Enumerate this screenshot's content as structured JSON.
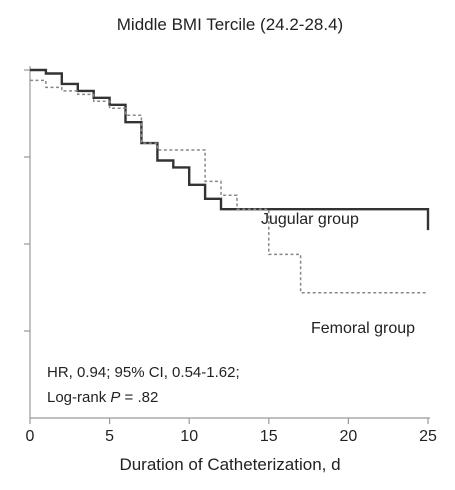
{
  "chart_data": {
    "type": "line",
    "title": "Middle BMI Tercile (24.2-28.4)",
    "xlabel": "Duration of Catheterization, d",
    "ylabel": "",
    "xlim": [
      0,
      25
    ],
    "ylim": [
      0,
      1
    ],
    "x_ticks": [
      0,
      5,
      10,
      15,
      20,
      25
    ],
    "x_tick_labels": [
      "0",
      "5",
      "10",
      "15",
      "20",
      "25"
    ],
    "y_ticks": [
      0.25,
      0.5,
      0.75,
      1.0
    ],
    "grid": false,
    "series": [
      {
        "name": "Jugular group",
        "color": "#333333",
        "line_style": "solid",
        "points": [
          [
            0,
            1.0
          ],
          [
            1,
            0.99
          ],
          [
            2,
            0.96
          ],
          [
            3,
            0.94
          ],
          [
            4,
            0.92
          ],
          [
            5,
            0.9
          ],
          [
            6,
            0.85
          ],
          [
            7,
            0.79
          ],
          [
            8,
            0.74
          ],
          [
            9,
            0.72
          ],
          [
            10,
            0.67
          ],
          [
            11,
            0.63
          ],
          [
            12,
            0.6
          ],
          [
            25,
            0.6
          ],
          [
            25,
            0.54
          ]
        ]
      },
      {
        "name": "Femoral group",
        "color": "#888888",
        "line_style": "dashed",
        "points": [
          [
            0,
            0.97
          ],
          [
            1,
            0.95
          ],
          [
            2,
            0.94
          ],
          [
            3,
            0.93
          ],
          [
            4,
            0.91
          ],
          [
            5,
            0.89
          ],
          [
            6,
            0.87
          ],
          [
            7,
            0.79
          ],
          [
            8,
            0.77
          ],
          [
            11,
            0.68
          ],
          [
            12,
            0.64
          ],
          [
            13,
            0.6
          ],
          [
            15,
            0.6
          ],
          [
            15,
            0.47
          ],
          [
            17,
            0.47
          ],
          [
            17,
            0.36
          ],
          [
            25,
            0.36
          ]
        ]
      }
    ],
    "annotations": {
      "jugular_label": "Jugular group",
      "femoral_label": "Femoral group",
      "stats_line1": "HR, 0.94; 95% CI, 0.54-1.62;",
      "stats_line2_prefix": "Log-rank ",
      "stats_line2_italic": "P",
      "stats_line2_suffix": " = .82"
    }
  }
}
